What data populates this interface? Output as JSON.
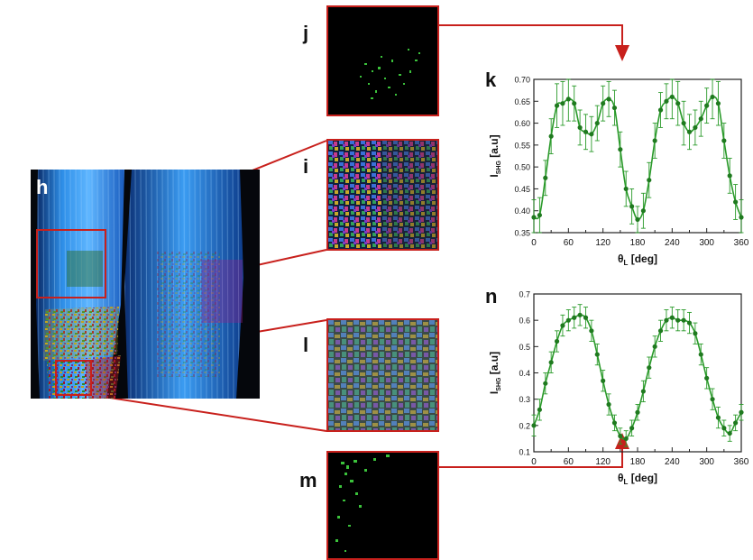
{
  "panels": {
    "h": "h",
    "i": "i",
    "j": "j",
    "k": "k",
    "l": "l",
    "m": "m",
    "n": "n"
  },
  "colors": {
    "frame_red": "#c8201c",
    "curve_green": "#2a9a2a",
    "marker_green": "#1f7a1f",
    "micro_blue": "#3aa0f0"
  },
  "chart_data": [
    {
      "id": "k",
      "type": "scatter",
      "title": "",
      "xlabel_main": "θ",
      "xlabel_sub": "L",
      "xlabel_unit": "[deg]",
      "ylabel_main": "I",
      "ylabel_sub": "SHG",
      "ylabel_unit": "[a.u]",
      "xlim": [
        0,
        360
      ],
      "ylim": [
        0.35,
        0.7
      ],
      "xticks": [
        0,
        60,
        120,
        180,
        240,
        300,
        360
      ],
      "yticks": [
        0.35,
        0.4,
        0.45,
        0.5,
        0.55,
        0.6,
        0.65,
        0.7
      ],
      "ytick_labels": [
        "0.35",
        "0.40",
        "0.45",
        "0.50",
        "0.55",
        "0.60",
        "0.65",
        "0.70"
      ],
      "x": [
        0,
        10,
        20,
        30,
        40,
        50,
        60,
        70,
        80,
        90,
        100,
        110,
        120,
        130,
        140,
        150,
        160,
        170,
        180,
        190,
        200,
        210,
        220,
        230,
        240,
        250,
        260,
        270,
        280,
        290,
        300,
        310,
        320,
        330,
        340,
        350,
        360
      ],
      "y": [
        0.385,
        0.39,
        0.475,
        0.57,
        0.64,
        0.645,
        0.655,
        0.645,
        0.59,
        0.58,
        0.575,
        0.6,
        0.645,
        0.655,
        0.635,
        0.54,
        0.45,
        0.41,
        0.38,
        0.4,
        0.47,
        0.56,
        0.63,
        0.65,
        0.66,
        0.645,
        0.6,
        0.58,
        0.59,
        0.61,
        0.64,
        0.66,
        0.645,
        0.56,
        0.48,
        0.42,
        0.385
      ],
      "err": [
        0.04,
        0.04,
        0.04,
        0.04,
        0.05,
        0.05,
        0.05,
        0.04,
        0.04,
        0.04,
        0.04,
        0.04,
        0.04,
        0.04,
        0.04,
        0.04,
        0.04,
        0.04,
        0.03,
        0.04,
        0.04,
        0.04,
        0.04,
        0.04,
        0.05,
        0.05,
        0.05,
        0.04,
        0.04,
        0.04,
        0.04,
        0.05,
        0.05,
        0.04,
        0.04,
        0.04,
        0.04
      ],
      "fit": true
    },
    {
      "id": "n",
      "type": "scatter",
      "title": "",
      "xlabel_main": "θ",
      "xlabel_sub": "L",
      "xlabel_unit": "[deg]",
      "ylabel_main": "I",
      "ylabel_sub": "SHG",
      "ylabel_unit": "[a.u]",
      "xlim": [
        0,
        360
      ],
      "ylim": [
        0.1,
        0.7
      ],
      "xticks": [
        0,
        60,
        120,
        180,
        240,
        300,
        360
      ],
      "yticks": [
        0.1,
        0.2,
        0.3,
        0.4,
        0.5,
        0.6,
        0.7
      ],
      "ytick_labels": [
        "0.1",
        "0.2",
        "0.3",
        "0.4",
        "0.5",
        "0.6",
        "0.7"
      ],
      "x": [
        0,
        10,
        20,
        30,
        40,
        50,
        60,
        70,
        80,
        90,
        100,
        110,
        120,
        130,
        140,
        150,
        160,
        170,
        180,
        190,
        200,
        210,
        220,
        230,
        240,
        250,
        260,
        270,
        280,
        290,
        300,
        310,
        320,
        330,
        340,
        350,
        360
      ],
      "y": [
        0.2,
        0.26,
        0.36,
        0.44,
        0.52,
        0.58,
        0.6,
        0.61,
        0.62,
        0.61,
        0.56,
        0.47,
        0.37,
        0.28,
        0.21,
        0.16,
        0.15,
        0.19,
        0.25,
        0.33,
        0.42,
        0.5,
        0.56,
        0.6,
        0.61,
        0.6,
        0.6,
        0.59,
        0.55,
        0.47,
        0.38,
        0.3,
        0.23,
        0.19,
        0.17,
        0.21,
        0.25
      ],
      "err": [
        0.04,
        0.04,
        0.04,
        0.04,
        0.04,
        0.04,
        0.04,
        0.04,
        0.04,
        0.04,
        0.04,
        0.04,
        0.04,
        0.04,
        0.03,
        0.03,
        0.03,
        0.03,
        0.03,
        0.04,
        0.04,
        0.04,
        0.04,
        0.04,
        0.04,
        0.04,
        0.04,
        0.04,
        0.04,
        0.04,
        0.04,
        0.04,
        0.04,
        0.03,
        0.03,
        0.03,
        0.03
      ],
      "fit": true
    }
  ]
}
